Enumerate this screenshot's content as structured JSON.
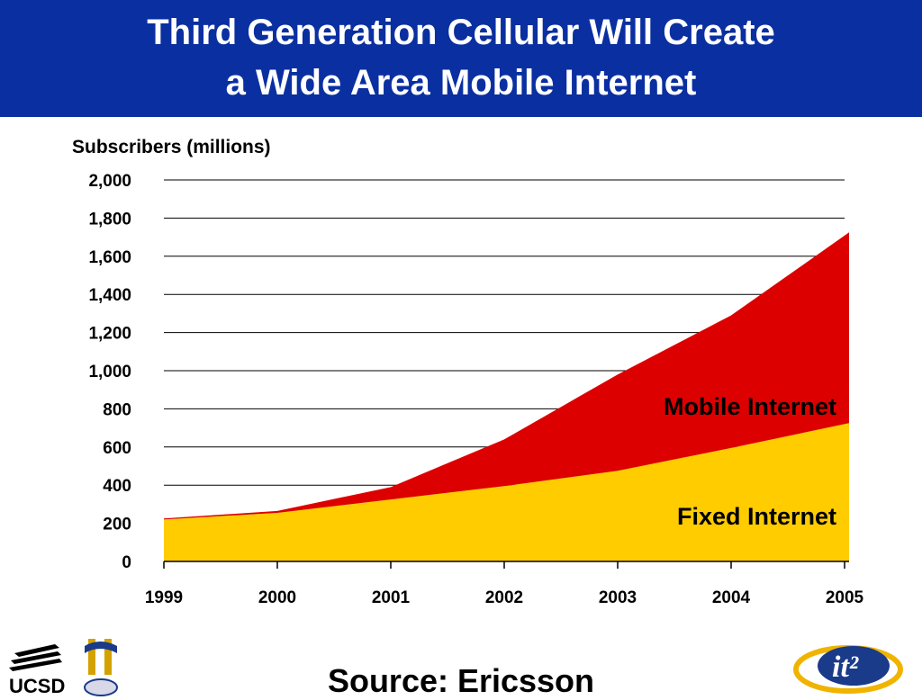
{
  "header": {
    "title_line1": "Third Generation Cellular Will Create",
    "title_line2": "a Wide Area Mobile Internet",
    "background_color": "#0a2fa0"
  },
  "chart_data": {
    "type": "area",
    "stacked": true,
    "ylabel": "Subscribers (millions)",
    "ylim": [
      0,
      2000
    ],
    "yticks": [
      "0",
      "200",
      "400",
      "600",
      "800",
      "1,000",
      "1,200",
      "1,400",
      "1,600",
      "1,800",
      "2,000"
    ],
    "categories": [
      "1999",
      "2000",
      "2001",
      "2002",
      "2003",
      "2004",
      "2005"
    ],
    "series": [
      {
        "name": "Fixed Internet",
        "color": "#ffcc00",
        "values": [
          220,
          255,
          325,
          395,
          475,
          595,
          725
        ]
      },
      {
        "name": "Mobile Internet",
        "color": "#dd0000",
        "values": [
          5,
          10,
          65,
          245,
          505,
          695,
          1000
        ]
      }
    ],
    "grid": true
  },
  "footer": {
    "source": "Source: Ericsson",
    "left_logo_text": "UCSD",
    "right_logo_text": "it²"
  }
}
